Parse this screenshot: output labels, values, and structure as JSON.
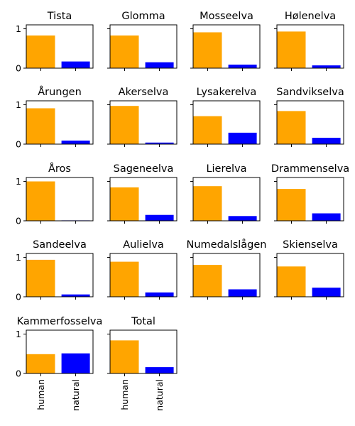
{
  "colors": {
    "human": "#FFA500",
    "natural": "#0000FF"
  },
  "chart_data": {
    "type": "bar",
    "layout": "small-multiples",
    "categories": [
      "human",
      "natural"
    ],
    "ylim": [
      0,
      1.1
    ],
    "yticks": [
      "0",
      "1"
    ],
    "shared_y": true,
    "grid": false,
    "panels": [
      {
        "title": "Tista",
        "values": [
          0.83,
          0.17
        ]
      },
      {
        "title": "Glomma",
        "values": [
          0.83,
          0.15
        ]
      },
      {
        "title": "Mosseelva",
        "values": [
          0.91,
          0.09
        ]
      },
      {
        "title": "Hølenelva",
        "values": [
          0.93,
          0.07
        ]
      },
      {
        "title": "Årungen",
        "values": [
          0.91,
          0.09
        ]
      },
      {
        "title": "Akerselva",
        "values": [
          0.97,
          0.04
        ]
      },
      {
        "title": "Lysakerelva",
        "values": [
          0.71,
          0.29
        ]
      },
      {
        "title": "Sandvikselva",
        "values": [
          0.84,
          0.16
        ]
      },
      {
        "title": "Åros",
        "values": [
          1.0,
          0.01
        ]
      },
      {
        "title": "Sageneelva",
        "values": [
          0.85,
          0.15
        ]
      },
      {
        "title": "Lierelva",
        "values": [
          0.88,
          0.12
        ]
      },
      {
        "title": "Drammenselva",
        "values": [
          0.81,
          0.19
        ]
      },
      {
        "title": "Sandeelva",
        "values": [
          0.94,
          0.06
        ]
      },
      {
        "title": "Aulielva",
        "values": [
          0.89,
          0.11
        ]
      },
      {
        "title": "Numedalslågen",
        "values": [
          0.81,
          0.19
        ]
      },
      {
        "title": "Skienselva",
        "values": [
          0.77,
          0.23
        ]
      },
      {
        "title": "Kammerfosselva",
        "values": [
          0.49,
          0.51
        ]
      },
      {
        "title": "Total",
        "values": [
          0.84,
          0.16
        ]
      }
    ]
  }
}
